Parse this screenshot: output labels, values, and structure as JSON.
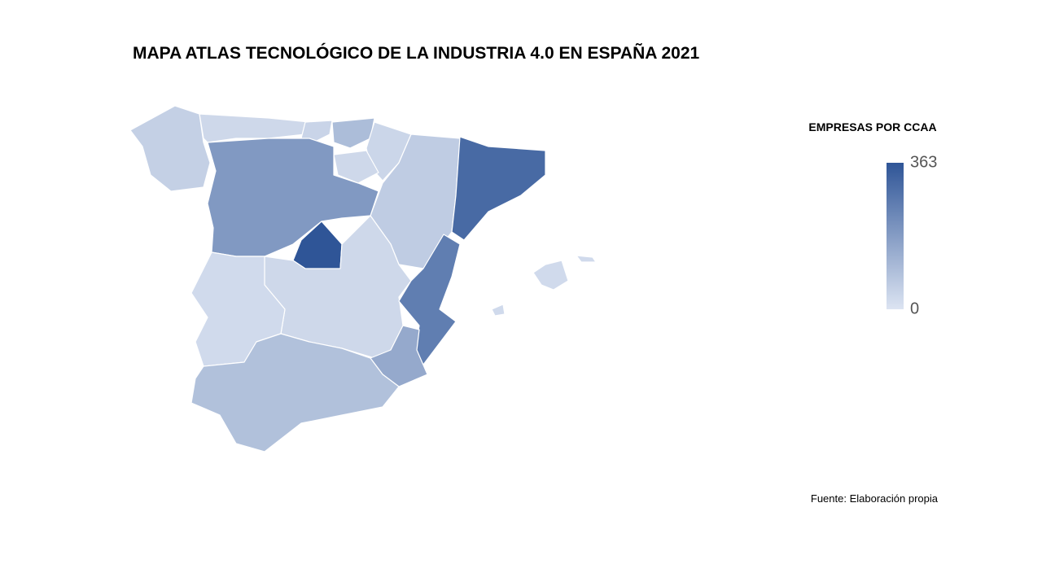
{
  "chart_data": {
    "type": "choropleth",
    "title": "MAPA ATLAS TECNOLÓGICO DE LA INDUSTRIA 4.0 EN ESPAÑA 2021",
    "legend_title": "EMPRESAS POR CCAA",
    "values": [
      50,
      30,
      40,
      100,
      35,
      30,
      60,
      310,
      190,
      363,
      30,
      260,
      150,
      25,
      90,
      25
    ],
    "colorlim": [
      0,
      363
    ],
    "colorticks": [
      0,
      363
    ],
    "colors": [
      "#dce4f2",
      "#2f5597"
    ],
    "source": "Fuente:  Elaboración propia"
  }
}
